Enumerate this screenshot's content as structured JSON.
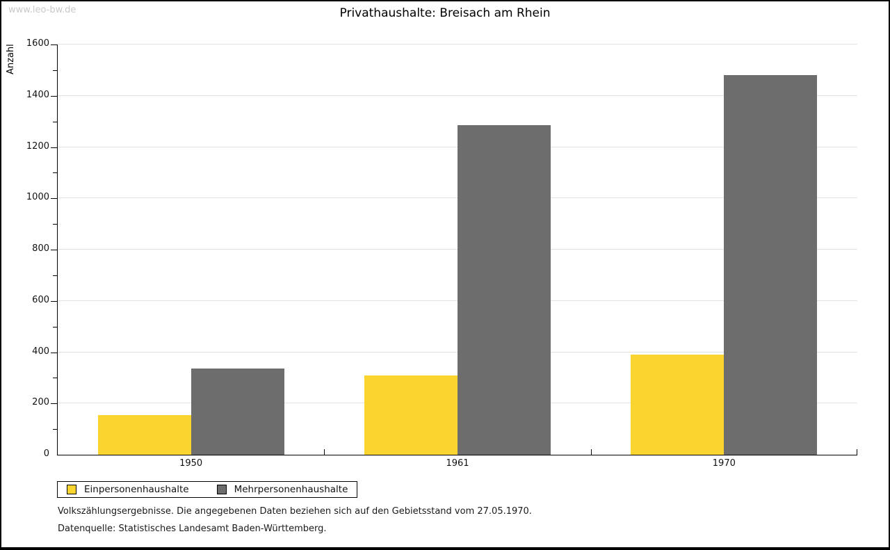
{
  "watermark": "www.leo-bw.de",
  "chart_data": {
    "type": "bar",
    "title": "Privathaushalte: Breisach am Rhein",
    "xlabel": "",
    "ylabel": "Anzahl",
    "categories": [
      "1950",
      "1961",
      "1970"
    ],
    "series": [
      {
        "name": "Einpersonenhaushalte",
        "color": "#FCD42F",
        "values": [
          155,
          310,
          390
        ]
      },
      {
        "name": "Mehrpersonenhaushalte",
        "color": "#6D6D6D",
        "values": [
          335,
          1285,
          1480
        ]
      }
    ],
    "ylim": [
      0,
      1600
    ],
    "ytick_step": 200,
    "yminor_step": 100,
    "grid": true,
    "legend_position": "bottom-left"
  },
  "footer": {
    "note": "Volkszählungsergebnisse. Die angegebenen Daten beziehen sich auf den Gebietsstand vom 27.05.1970.",
    "source": "Datenquelle: Statistisches Landesamt Baden-Württemberg."
  }
}
